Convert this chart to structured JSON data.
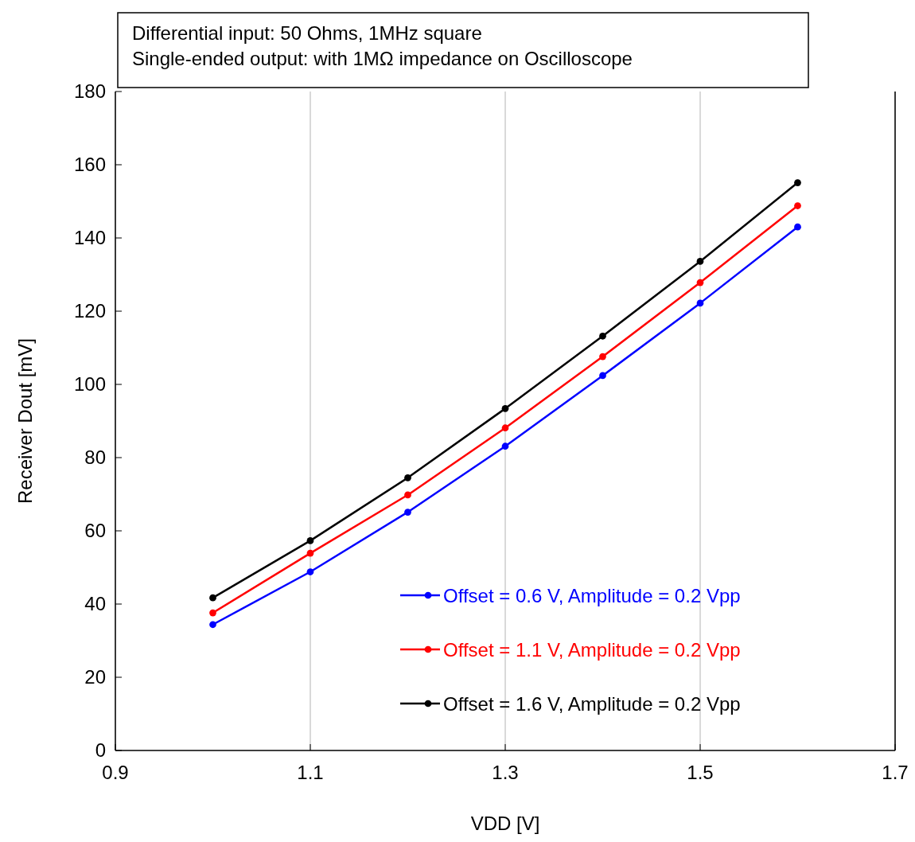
{
  "chart_data": {
    "type": "line",
    "xlabel": "VDD [V]",
    "ylabel": "Receiver Dout [mV]",
    "annotations": [
      "Differential input: 50 Ohms, 1MHz square",
      "Single-ended output: with 1MΩ impedance on Oscilloscope"
    ],
    "x": [
      1.0,
      1.1,
      1.2,
      1.3,
      1.4,
      1.5,
      1.6
    ],
    "series": [
      {
        "name": "Offset = 0.6 V, Amplitude = 0.2 Vpp",
        "color": "#0000ff",
        "values": [
          34.4,
          48.8,
          65.1,
          83.1,
          102.4,
          122.2,
          143.0
        ]
      },
      {
        "name": "Offset = 1.1 V, Amplitude = 0.2 Vpp",
        "color": "#ff0000",
        "values": [
          37.6,
          53.9,
          69.8,
          88.1,
          107.6,
          127.8,
          148.8
        ]
      },
      {
        "name": "Offset = 1.6 V, Amplitude = 0.2 Vpp",
        "color": "#000000",
        "values": [
          41.7,
          57.3,
          74.5,
          93.4,
          113.2,
          133.6,
          155.1
        ]
      }
    ],
    "xlim": [
      0.9,
      1.7
    ],
    "xticks": [
      0.9,
      1.1,
      1.3,
      1.5,
      1.7
    ],
    "ylim": [
      0,
      180
    ],
    "yticks": [
      0,
      20,
      40,
      60,
      80,
      100,
      120,
      140,
      160,
      180
    ],
    "grid": "x",
    "legend": "bottom right",
    "marker": "circle",
    "line_style": "solid"
  }
}
